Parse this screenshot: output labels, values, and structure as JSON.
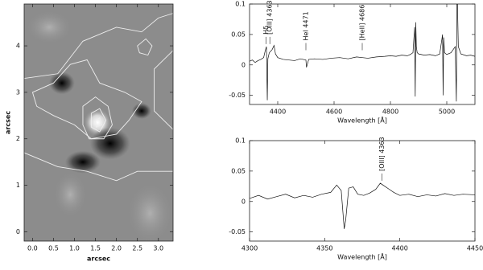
{
  "chart_data": [
    {
      "type": "image",
      "xlabel": "arcsec",
      "ylabel": "arcsec",
      "xlim": [
        -0.2,
        3.35
      ],
      "ylim": [
        -0.2,
        4.9
      ],
      "xticks": [
        {
          "value": 0,
          "label": "0.0"
        },
        0.5,
        {
          "value": 1,
          "label": "1.0"
        },
        1.5,
        {
          "value": 2,
          "label": "2.0"
        },
        2.5,
        {
          "value": 3,
          "label": "3.0"
        }
      ],
      "yticks": [
        0,
        1,
        2,
        3,
        4
      ]
    },
    {
      "type": "line",
      "xlabel": "Wavelength [Å]",
      "color": "#111",
      "annotations": [
        "Hδ",
        "[OIII] 4363",
        "HeI 4471",
        "[HeII] 4686"
      ],
      "xlim": [
        4300,
        5100
      ],
      "ylim": [
        -0.065,
        0.1
      ],
      "xticks": [
        4400,
        4600,
        4800,
        5000
      ],
      "yticks": [
        -0.05,
        0,
        0.05,
        0.1
      ],
      "x": [
        4300,
        4310,
        4320,
        4330,
        4340,
        4350,
        4355,
        4360,
        4363,
        4365,
        4370,
        4380,
        4387,
        4392,
        4400,
        4420,
        4440,
        4460,
        4480,
        4500,
        4502,
        4510,
        4530,
        4560,
        4590,
        4620,
        4650,
        4680,
        4700,
        4720,
        4750,
        4780,
        4800,
        4820,
        4840,
        4860,
        4870,
        4880,
        4886,
        4888,
        4890,
        4892,
        4895,
        4900,
        4920,
        4940,
        4960,
        4975,
        4985,
        4987,
        4989,
        4992,
        5000,
        5015,
        5030,
        5034,
        5036,
        5038,
        5041,
        5050,
        5070,
        5085,
        5100
      ],
      "values": [
        0.006,
        0.008,
        0.004,
        0.007,
        0.009,
        0.012,
        0.022,
        0.03,
        -0.058,
        0.01,
        0.02,
        0.025,
        0.032,
        0.018,
        0.012,
        0.009,
        0.008,
        0.007,
        0.01,
        0.008,
        -0.004,
        0.009,
        0.01,
        0.009,
        0.011,
        0.012,
        0.01,
        0.013,
        0.012,
        0.011,
        0.013,
        0.014,
        0.015,
        0.014,
        0.016,
        0.015,
        0.017,
        0.02,
        0.062,
        -0.052,
        0.07,
        0.03,
        0.02,
        0.018,
        0.016,
        0.017,
        0.015,
        0.018,
        0.05,
        -0.05,
        0.045,
        0.02,
        0.017,
        0.02,
        0.03,
        -0.06,
        0.1,
        0.1,
        0.03,
        0.018,
        0.015,
        0.016,
        0.014
      ]
    },
    {
      "type": "line",
      "xlabel": "Wavelength [Å]",
      "color": "#111",
      "annotations": [
        "[OIII] 4363"
      ],
      "xlim": [
        4300,
        4450
      ],
      "ylim": [
        -0.065,
        0.1
      ],
      "xticks": [
        4300,
        4350,
        4400,
        4450
      ],
      "yticks": [
        -0.05,
        0,
        0.05,
        0.1
      ],
      "x": [
        4300,
        4306,
        4312,
        4318,
        4324,
        4330,
        4336,
        4342,
        4348,
        4354,
        4358,
        4361,
        4363,
        4364,
        4366,
        4369,
        4372,
        4376,
        4380,
        4384,
        4387,
        4390,
        4393,
        4396,
        4400,
        4406,
        4412,
        4418,
        4424,
        4430,
        4436,
        4442,
        4450
      ],
      "values": [
        0.005,
        0.01,
        0.004,
        0.008,
        0.012,
        0.006,
        0.01,
        0.007,
        0.012,
        0.015,
        0.027,
        0.018,
        -0.045,
        -0.03,
        0.022,
        0.024,
        0.012,
        0.01,
        0.014,
        0.02,
        0.03,
        0.025,
        0.02,
        0.015,
        0.01,
        0.012,
        0.008,
        0.011,
        0.009,
        0.013,
        0.01,
        0.012,
        0.011
      ]
    }
  ]
}
